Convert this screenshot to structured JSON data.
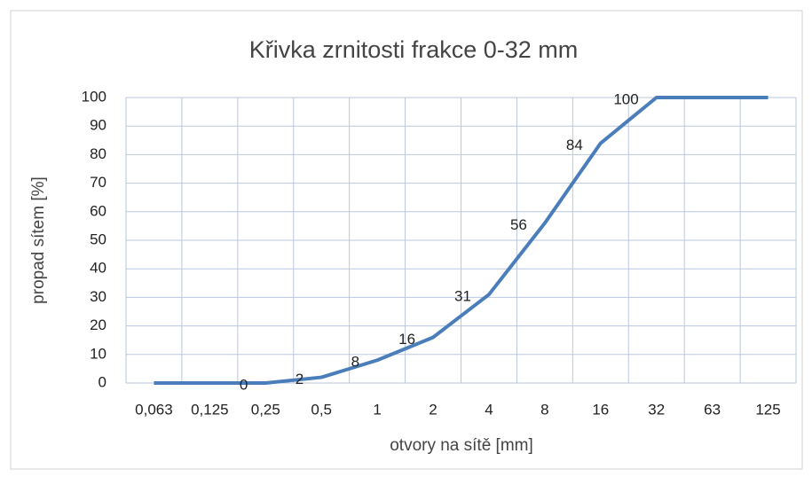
{
  "chart_data": {
    "type": "line",
    "title": "Křivka zrnitosti frakce 0-32 mm",
    "x_label": "otvory na sítě [mm]",
    "y_label": "propad sítem [%]",
    "categories": [
      "0,063",
      "0,125",
      "0,25",
      "0,5",
      "1",
      "2",
      "4",
      "8",
      "16",
      "32",
      "63",
      "125"
    ],
    "values": [
      0,
      0,
      0,
      2,
      8,
      16,
      31,
      56,
      84,
      100,
      100,
      100
    ],
    "value_labels": [
      null,
      null,
      "0",
      "2",
      "8",
      "16",
      "31",
      "56",
      "84",
      "100",
      null,
      null
    ],
    "color": "#4a7ebb",
    "ylim": [
      0,
      100
    ],
    "yticks": [
      0,
      10,
      20,
      30,
      40,
      50,
      60,
      70,
      80,
      90,
      100
    ],
    "grid": true
  }
}
